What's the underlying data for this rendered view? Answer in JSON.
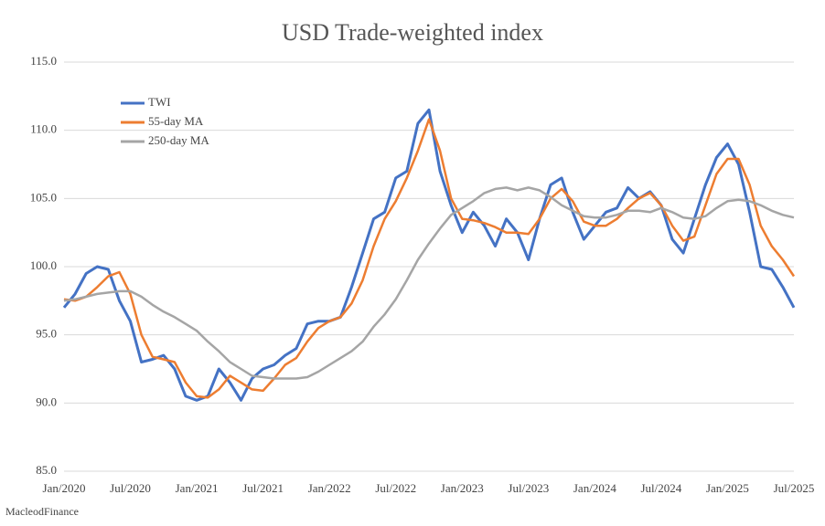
{
  "chart_data": {
    "type": "line",
    "title": "USD Trade-weighted index",
    "source": "MacleodFinance",
    "categories": [
      "Jan/2020",
      null,
      null,
      null,
      null,
      null,
      "Jul/2020",
      null,
      null,
      null,
      null,
      null,
      "Jan/2021",
      null,
      null,
      null,
      null,
      null,
      "Jul/2021",
      null,
      null,
      null,
      null,
      null,
      "Jan/2022",
      null,
      null,
      null,
      null,
      null,
      "Jul/2022",
      null,
      null,
      null,
      null,
      null,
      "Jan/2023",
      null,
      null,
      null,
      null,
      null,
      "Jul/2023",
      null,
      null,
      null,
      null,
      null,
      "Jan/2024",
      null,
      null,
      null,
      null,
      null,
      "Jul/2024",
      null,
      null,
      null,
      null,
      null,
      "Jan/2025",
      null,
      null,
      null,
      null,
      null,
      "Jul/2025"
    ],
    "series": [
      {
        "name": "TWI",
        "color": "#4472c4",
        "width": 3,
        "values": [
          97,
          98,
          99.5,
          100,
          99.8,
          97.5,
          96,
          93,
          93.2,
          93.5,
          92.5,
          90.5,
          90.2,
          90.5,
          92.5,
          91.5,
          90.2,
          91.8,
          92.5,
          92.8,
          93.5,
          94,
          95.8,
          96,
          96,
          96.3,
          98.5,
          101,
          103.5,
          104,
          106.5,
          107,
          110.5,
          111.5,
          107,
          104.5,
          102.5,
          104,
          103,
          101.5,
          103.5,
          102.5,
          100.5,
          103.5,
          106,
          106.5,
          104,
          102,
          103,
          104,
          104.3,
          105.8,
          105,
          105.5,
          104.5,
          102,
          101,
          103.5,
          106,
          108,
          109,
          107.5,
          104,
          100,
          99.8,
          98.5,
          97
        ]
      },
      {
        "name": "55-day MA",
        "color": "#ed7d31",
        "width": 2.5,
        "values": [
          97.6,
          97.5,
          97.8,
          98.5,
          99.3,
          99.6,
          98,
          95,
          93.4,
          93.2,
          93,
          91.5,
          90.5,
          90.4,
          91,
          92,
          91.5,
          91,
          90.9,
          91.8,
          92.8,
          93.3,
          94.5,
          95.5,
          96,
          96.3,
          97.3,
          99,
          101.5,
          103.5,
          104.8,
          106.5,
          108.5,
          110.8,
          108.5,
          105,
          103.5,
          103.4,
          103.2,
          102.9,
          102.5,
          102.5,
          102.4,
          103.5,
          105,
          105.7,
          104.8,
          103.3,
          103,
          103,
          103.5,
          104.3,
          105,
          105.4,
          104.5,
          103,
          101.9,
          102.2,
          104.5,
          106.8,
          107.9,
          107.9,
          106,
          103,
          101.5,
          100.5,
          99.3
        ]
      },
      {
        "name": "250-day MA",
        "color": "#a5a5a5",
        "width": 2.5,
        "values": [
          97.5,
          97.6,
          97.8,
          98,
          98.1,
          98.2,
          98.2,
          97.8,
          97.2,
          96.7,
          96.3,
          95.8,
          95.3,
          94.5,
          93.8,
          93,
          92.5,
          92,
          91.9,
          91.8,
          91.8,
          91.8,
          91.9,
          92.3,
          92.8,
          93.3,
          93.8,
          94.5,
          95.6,
          96.5,
          97.6,
          99,
          100.5,
          101.7,
          102.8,
          103.8,
          104.3,
          104.8,
          105.4,
          105.7,
          105.8,
          105.6,
          105.8,
          105.6,
          105.1,
          104.5,
          104.1,
          103.7,
          103.6,
          103.6,
          103.8,
          104.1,
          104.1,
          104,
          104.3,
          104,
          103.6,
          103.5,
          103.7,
          104.3,
          104.8,
          104.9,
          104.8,
          104.5,
          104.1,
          103.8,
          103.6
        ]
      }
    ],
    "ylim": [
      85,
      115
    ],
    "yticks": [
      {
        "value": 85,
        "label": "85.0"
      },
      {
        "value": 90,
        "label": "90.0"
      },
      {
        "value": 95,
        "label": "95.0"
      },
      {
        "value": 100,
        "label": "100.0"
      },
      {
        "value": 105,
        "label": "105.0"
      },
      {
        "value": 110,
        "label": "110.0"
      },
      {
        "value": 115,
        "label": "115.0"
      }
    ],
    "grid": true,
    "legend": "upper left"
  }
}
